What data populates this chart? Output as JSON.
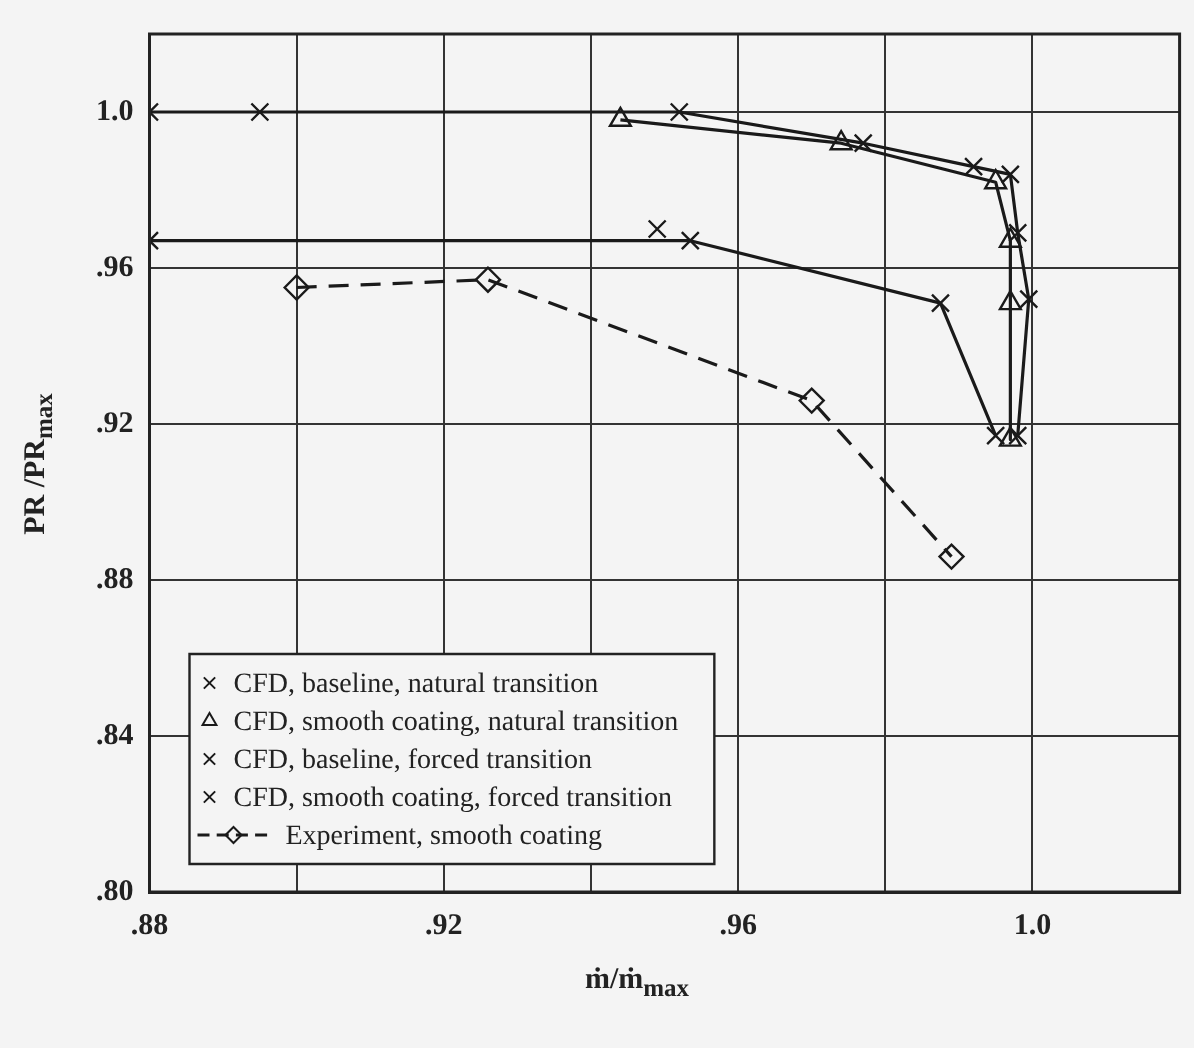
{
  "chart_data": {
    "type": "line",
    "xlabel": "ṁ/ṁ$_{max}$",
    "ylabel": "PR /PR$_{max}$",
    "xlim": [
      0.88,
      1.02
    ],
    "ylim": [
      0.8,
      1.02
    ],
    "xticks": [
      {
        "value": 0.88,
        "label": ".88"
      },
      {
        "value": 0.9,
        "label": null
      },
      {
        "value": 0.92,
        "label": ".92"
      },
      {
        "value": 0.94,
        "label": null
      },
      {
        "value": 0.96,
        "label": ".96"
      },
      {
        "value": 0.98,
        "label": null
      },
      {
        "value": 1.0,
        "label": "1.0"
      }
    ],
    "yticks": [
      {
        "value": 0.8,
        "label": ".80"
      },
      {
        "value": 0.84,
        "label": ".84"
      },
      {
        "value": 0.88,
        "label": ".88"
      },
      {
        "value": 0.92,
        "label": ".92"
      },
      {
        "value": 0.96,
        "label": ".96"
      },
      {
        "value": 1.0,
        "label": "1.0"
      }
    ],
    "grid": true,
    "legend": "bottom left",
    "series": [
      {
        "name": "CFD, baseline, natural transition",
        "color": "#1a1a1a",
        "marker": "cross",
        "line_style": "solid",
        "x": [
          0.88,
          0.895,
          0.952,
          0.977,
          0.992,
          0.997,
          0.998,
          0.9995,
          0.998
        ],
        "values": [
          1.0,
          1.0,
          1.0,
          0.992,
          0.986,
          0.984,
          0.969,
          0.952,
          0.917
        ]
      },
      {
        "name": "CFD, smooth coating, natural transition",
        "color": "#1a1a1a",
        "marker": "triangle",
        "line_style": "solid",
        "x": [
          0.944,
          0.974,
          0.995,
          0.997,
          0.997,
          0.997
        ],
        "values": [
          0.998,
          0.992,
          0.982,
          0.967,
          0.951,
          0.916
        ]
      },
      {
        "name": "CFD, baseline, forced transition",
        "color": "#1a1a1a",
        "marker": "cross",
        "line_style": "solid",
        "x": [
          0.949
        ],
        "values": [
          0.97
        ]
      },
      {
        "name": "CFD, smooth coating, forced transition",
        "color": "#1a1a1a",
        "marker": "cross",
        "line_style": "solid",
        "x": [
          0.88,
          0.9535,
          0.9875,
          0.995
        ],
        "values": [
          0.967,
          0.967,
          0.951,
          0.917
        ]
      },
      {
        "name": "Experiment, smooth coating",
        "color": "#1a1a1a",
        "marker": "diamond",
        "line_style": "dashed",
        "x": [
          0.9,
          0.926,
          0.97,
          0.989
        ],
        "values": [
          0.955,
          0.957,
          0.926,
          0.886
        ]
      }
    ]
  }
}
